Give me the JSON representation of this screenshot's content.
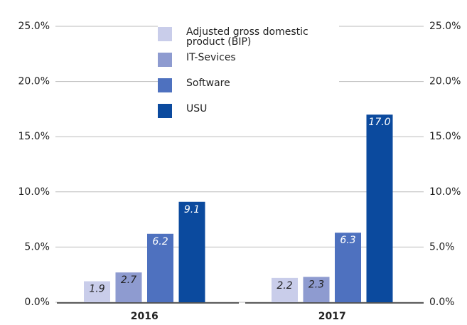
{
  "chart_data": {
    "type": "bar",
    "categories": [
      "2016",
      "2017"
    ],
    "series": [
      {
        "name": "Adjusted gross domestic product (BIP)",
        "color": "#c9cdea",
        "values": [
          1.9,
          2.2
        ]
      },
      {
        "name": "IT-Sevices",
        "color": "#8e9bd0",
        "values": [
          2.7,
          2.3
        ]
      },
      {
        "name": "Software",
        "color": "#4e71bf",
        "values": [
          6.2,
          6.3
        ]
      },
      {
        "name": "USU",
        "color": "#0b4a9e",
        "values": [
          9.1,
          17.0
        ],
        "value_labels": [
          "9.1",
          "17.0"
        ]
      }
    ],
    "ylim": [
      0,
      25
    ],
    "yticks": [
      {
        "value": 0,
        "label": "0.0%"
      },
      {
        "value": 5,
        "label": "5.0%"
      },
      {
        "value": 10,
        "label": "10.0%"
      },
      {
        "value": 15,
        "label": "15.0%"
      },
      {
        "value": 20,
        "label": "20.0%"
      },
      {
        "value": 25,
        "label": "25.0%"
      }
    ],
    "y2lim": [
      0,
      25
    ],
    "y2ticks": [
      {
        "value": 0,
        "label": "0.0%"
      },
      {
        "value": 5,
        "label": "5.0%"
      },
      {
        "value": 10,
        "label": "10.0%"
      },
      {
        "value": 15,
        "label": "15.0%"
      },
      {
        "value": 20,
        "label": "20.0%"
      },
      {
        "value": 25,
        "label": "25.0%"
      }
    ],
    "grid": true
  }
}
